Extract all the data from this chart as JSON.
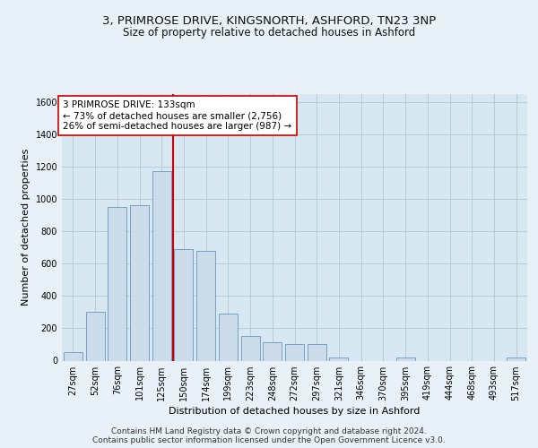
{
  "title_line1": "3, PRIMROSE DRIVE, KINGSNORTH, ASHFORD, TN23 3NP",
  "title_line2": "Size of property relative to detached houses in Ashford",
  "xlabel": "Distribution of detached houses by size in Ashford",
  "ylabel": "Number of detached properties",
  "categories": [
    "27sqm",
    "52sqm",
    "76sqm",
    "101sqm",
    "125sqm",
    "150sqm",
    "174sqm",
    "199sqm",
    "223sqm",
    "248sqm",
    "272sqm",
    "297sqm",
    "321sqm",
    "346sqm",
    "370sqm",
    "395sqm",
    "419sqm",
    "444sqm",
    "468sqm",
    "493sqm",
    "517sqm"
  ],
  "values": [
    50,
    305,
    950,
    960,
    1175,
    690,
    680,
    290,
    155,
    115,
    100,
    100,
    20,
    0,
    0,
    20,
    0,
    0,
    0,
    0,
    20
  ],
  "bar_color": "#cddceb",
  "bar_edge_color": "#6699bb",
  "vline_x": 4.5,
  "vline_color": "#cc0000",
  "annotation_text": "3 PRIMROSE DRIVE: 133sqm\n← 73% of detached houses are smaller (2,756)\n26% of semi-detached houses are larger (987) →",
  "annotation_box_color": "#ffffff",
  "annotation_box_edge": "#cc0000",
  "ylim": [
    0,
    1650
  ],
  "yticks": [
    0,
    200,
    400,
    600,
    800,
    1000,
    1200,
    1400,
    1600
  ],
  "grid_color": "#b8ccd8",
  "background_color": "#d8e8f2",
  "fig_background_color": "#e8f0f8",
  "footer_text": "Contains HM Land Registry data © Crown copyright and database right 2024.\nContains public sector information licensed under the Open Government Licence v3.0.",
  "title_fontsize": 9.5,
  "subtitle_fontsize": 8.5,
  "tick_fontsize": 7,
  "label_fontsize": 8,
  "annotation_fontsize": 7.5,
  "footer_fontsize": 6.5
}
